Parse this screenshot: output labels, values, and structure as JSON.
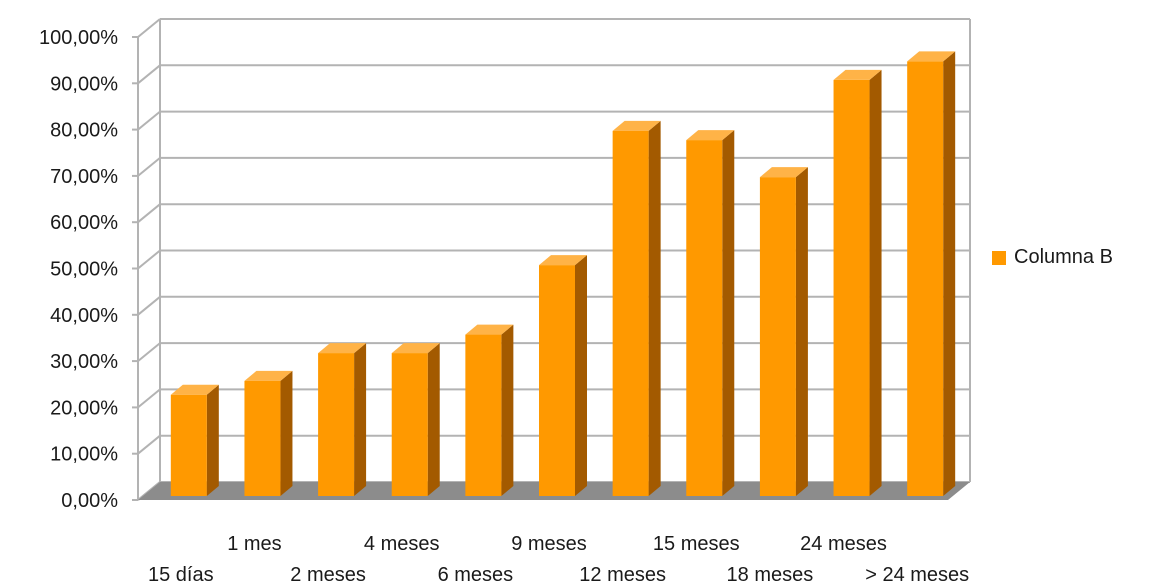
{
  "chart_data": {
    "type": "bar",
    "style": "3d",
    "categories": [
      "15 días",
      "1 mes",
      "2 meses",
      "4 meses",
      "6 meses",
      "9 meses",
      "12 meses",
      "15 meses",
      "18 meses",
      "24 meses",
      "> 24 meses"
    ],
    "series": [
      {
        "name": "Columna B",
        "values": [
          0.21,
          0.24,
          0.3,
          0.3,
          0.34,
          0.49,
          0.78,
          0.76,
          0.68,
          0.89,
          0.93
        ]
      }
    ],
    "ylim": [
      0,
      1
    ],
    "yticks": [
      "0,00%",
      "10,00%",
      "20,00%",
      "30,00%",
      "40,00%",
      "50,00%",
      "60,00%",
      "70,00%",
      "80,00%",
      "90,00%",
      "100,00%"
    ],
    "grid": true,
    "legend_position": "right",
    "colors": {
      "bar_front": "#ff9900",
      "bar_side": "#a35a00",
      "bar_top": "#ffb347",
      "grid": "#b3b3b3",
      "floor": "#8c8c8c",
      "legend": "#ff9900"
    }
  }
}
